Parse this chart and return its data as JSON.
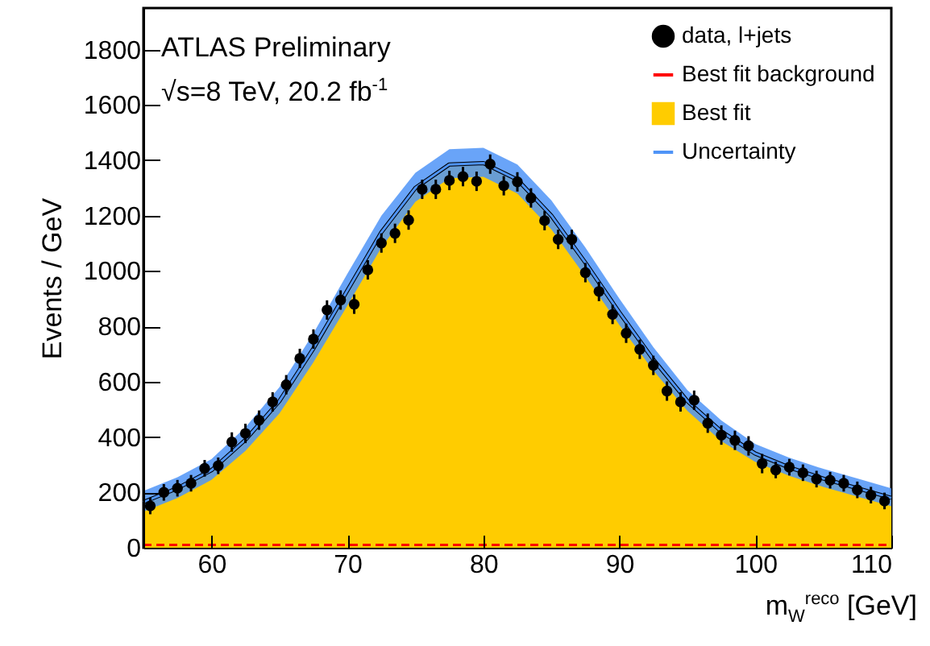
{
  "chart_data": {
    "type": "scatter",
    "xlabel": "m$_{W}$$^{reco}$ [GeV]",
    "ylabel": "Events / GeV",
    "annotations": [
      "ATLAS Preliminary",
      "√s=8 TeV, 20.2 fb$^{-1}$"
    ],
    "xlim": [
      55,
      110
    ],
    "xticks": [
      60,
      70,
      80,
      90,
      100,
      110
    ],
    "ylim": [
      0,
      1950
    ],
    "yticks": [
      0,
      200,
      400,
      600,
      800,
      1000,
      1200,
      1400,
      1600,
      1800
    ],
    "grid": false,
    "legend": "top right",
    "series": [
      {
        "name": "data, l+jets",
        "marker": "circle",
        "color": "#000000",
        "x": [
          55.5,
          56.5,
          57.5,
          58.5,
          59.5,
          60.5,
          61.5,
          62.5,
          63.5,
          64.5,
          65.5,
          66.5,
          67.5,
          68.5,
          69.5,
          70.5,
          71.5,
          72.5,
          73.5,
          74.5,
          75.5,
          76.5,
          77.5,
          78.5,
          79.5,
          80.5,
          81.5,
          82.5,
          83.5,
          84.5,
          85.5,
          86.5,
          87.5,
          88.5,
          89.5,
          90.5,
          91.5,
          92.5,
          93.5,
          94.5,
          95.5,
          96.5,
          97.5,
          98.5,
          99.5,
          100.5,
          101.5,
          102.5,
          103.5,
          104.5,
          105.5,
          106.5,
          107.5,
          108.5,
          109.5
        ],
        "values": [
          151,
          200,
          215,
          233,
          287,
          296,
          382,
          413,
          461,
          527,
          589,
          684,
          754,
          859,
          895,
          880,
          1004,
          1101,
          1136,
          1184,
          1295,
          1295,
          1327,
          1341,
          1324,
          1386,
          1308,
          1322,
          1264,
          1182,
          1114,
          1114,
          994,
          926,
          843,
          775,
          717,
          659,
          566,
          527,
          533,
          450,
          407,
          388,
          368,
          304,
          281,
          291,
          271,
          248,
          244,
          233,
          209,
          190,
          169
        ],
        "errors": [
          30,
          30,
          30,
          30,
          30,
          30,
          35,
          35,
          35,
          35,
          35,
          35,
          35,
          35,
          35,
          35,
          35,
          35,
          35,
          35,
          35,
          35,
          35,
          35,
          35,
          35,
          35,
          35,
          35,
          35,
          35,
          35,
          35,
          35,
          35,
          35,
          35,
          35,
          35,
          35,
          35,
          35,
          35,
          35,
          35,
          35,
          30,
          30,
          30,
          30,
          30,
          30,
          30,
          30,
          30
        ]
      },
      {
        "name": "Best fit background",
        "type": "line",
        "line_style": "dashed",
        "color": "#ff0000",
        "x": [
          55,
          57.5,
          60,
          62.5,
          65,
          67.5,
          70,
          72.5,
          75,
          77.5,
          80,
          82.5,
          85,
          87.5,
          90,
          92.5,
          95,
          97.5,
          100,
          102.5,
          105,
          107.5,
          110
        ],
        "values": [
          10,
          10,
          10,
          10,
          10,
          10,
          10,
          10,
          10,
          10,
          10,
          10,
          10,
          10,
          10,
          10,
          10,
          10,
          10,
          10,
          10,
          10,
          10
        ]
      },
      {
        "name": "Best fit",
        "type": "area",
        "color": "#ffcc00",
        "x": [
          55,
          57.5,
          60,
          62.5,
          65,
          67.5,
          70,
          72.5,
          75,
          77.5,
          80,
          82.5,
          85,
          87.5,
          90,
          92.5,
          95,
          97.5,
          100,
          102.5,
          105,
          107.5,
          110
        ],
        "values": [
          165,
          215,
          280,
          390,
          530,
          720,
          930,
          1140,
          1300,
          1385,
          1390,
          1330,
          1200,
          1030,
          850,
          680,
          530,
          420,
          340,
          290,
          250,
          215,
          180
        ]
      },
      {
        "name": "Uncertainty",
        "type": "line",
        "color": "#4f94f7",
        "x": [
          55,
          57.5,
          60,
          62.5,
          65,
          67.5,
          70,
          72.5,
          75,
          77.5,
          80,
          82.5,
          85,
          87.5,
          90,
          92.5,
          95,
          97.5,
          100,
          102.5,
          105,
          107.5,
          110
        ],
        "values": [
          165,
          215,
          280,
          390,
          530,
          720,
          930,
          1140,
          1300,
          1385,
          1390,
          1330,
          1200,
          1030,
          850,
          680,
          530,
          420,
          340,
          290,
          250,
          215,
          180
        ],
        "lower": [
          130,
          180,
          245,
          350,
          485,
          670,
          875,
          1085,
          1250,
          1335,
          1340,
          1280,
          1150,
          980,
          805,
          640,
          495,
          385,
          310,
          260,
          220,
          185,
          150
        ],
        "upper": [
          205,
          255,
          320,
          435,
          580,
          775,
          990,
          1200,
          1355,
          1440,
          1445,
          1385,
          1255,
          1085,
          900,
          725,
          570,
          460,
          375,
          325,
          285,
          250,
          215
        ]
      }
    ]
  }
}
